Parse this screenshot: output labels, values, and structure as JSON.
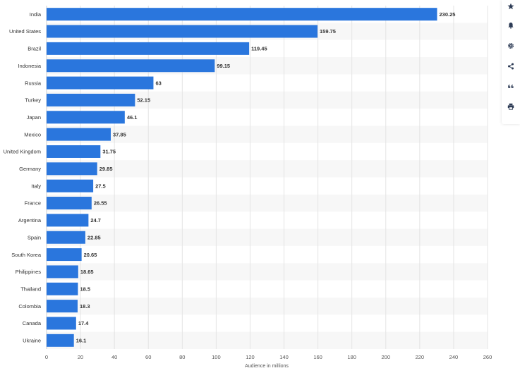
{
  "chart_data": {
    "type": "bar",
    "orientation": "horizontal",
    "categories": [
      "India",
      "United States",
      "Brazil",
      "Indonesia",
      "Russia",
      "Turkey",
      "Japan",
      "Mexico",
      "United Kingdom",
      "Germany",
      "Italy",
      "France",
      "Argentina",
      "Spain",
      "South Korea",
      "Philippines",
      "Thailand",
      "Colombia",
      "Canada",
      "Ukraine"
    ],
    "values": [
      230.25,
      159.75,
      119.45,
      99.15,
      63,
      52.15,
      46.1,
      37.85,
      31.75,
      29.85,
      27.5,
      26.55,
      24.7,
      22.85,
      20.65,
      18.65,
      18.5,
      18.3,
      17.4,
      16.1
    ],
    "value_labels": [
      "230.25",
      "159.75",
      "119.45",
      "99.15",
      "63",
      "52.15",
      "46.1",
      "37.85",
      "31.75",
      "29.85",
      "27.5",
      "26.55",
      "24.7",
      "22.85",
      "20.65",
      "18.65",
      "18.5",
      "18.3",
      "17.4",
      "16.1"
    ],
    "xlabel": "Audience in millions",
    "xlim": [
      0,
      260
    ],
    "xticks": [
      0,
      20,
      40,
      60,
      80,
      100,
      120,
      140,
      160,
      180,
      200,
      220,
      240,
      260
    ],
    "grid": true,
    "colors": {
      "bar": "#2a76dd",
      "alt_row": "#f7f7f7",
      "grid": "#e4e4e4",
      "icon": "#2d3b55"
    }
  },
  "toolbar": {
    "icons": [
      "star-icon",
      "bell-icon",
      "gear-icon",
      "share-icon",
      "quote-icon",
      "print-icon"
    ]
  }
}
